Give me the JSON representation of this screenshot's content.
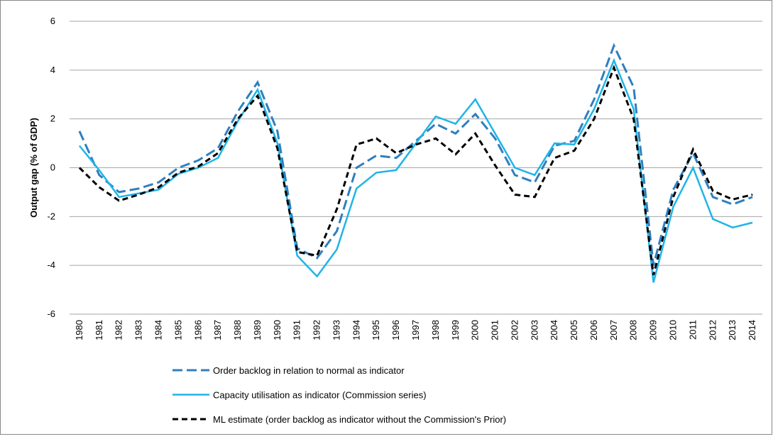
{
  "chart_data": {
    "type": "line",
    "y_label": "Output gap (% of GDP)",
    "x": [
      1980,
      1981,
      1982,
      1983,
      1984,
      1985,
      1986,
      1987,
      1988,
      1989,
      1990,
      1991,
      1992,
      1993,
      1994,
      1995,
      1996,
      1997,
      1998,
      1999,
      2000,
      2001,
      2002,
      2003,
      2004,
      2005,
      2006,
      2007,
      2008,
      2009,
      2010,
      2011,
      2012,
      2013,
      2014
    ],
    "ylim": [
      -6,
      6
    ],
    "yticks": [
      -6,
      -4,
      -2,
      0,
      2,
      4,
      6
    ],
    "grid": true,
    "legend": "bottom",
    "series": [
      {
        "name": "Order backlog in relation to normal as indicator",
        "color": "#2e7fbf",
        "style": "dashed",
        "values": [
          1.5,
          -0.3,
          -1.0,
          -0.85,
          -0.6,
          0.0,
          0.3,
          0.8,
          2.3,
          3.5,
          1.5,
          -3.3,
          -3.7,
          -2.6,
          0.0,
          0.5,
          0.4,
          1.1,
          1.8,
          1.4,
          2.2,
          1.2,
          -0.3,
          -0.6,
          0.9,
          1.1,
          2.8,
          5.0,
          3.3,
          -4.0,
          -0.9,
          0.6,
          -1.2,
          -1.5,
          -1.2
        ]
      },
      {
        "name": "Capacity utilisation as indicator (Commission series)",
        "color": "#1fb4e8",
        "style": "solid",
        "values": [
          0.9,
          -0.1,
          -1.2,
          -1.05,
          -0.9,
          -0.25,
          0.0,
          0.4,
          1.9,
          3.2,
          1.0,
          -3.6,
          -4.45,
          -3.35,
          -0.85,
          -0.2,
          -0.1,
          1.0,
          2.1,
          1.8,
          2.8,
          1.4,
          0.0,
          -0.3,
          1.0,
          0.95,
          2.4,
          4.4,
          2.4,
          -4.7,
          -1.6,
          0.0,
          -2.1,
          -2.45,
          -2.25
        ]
      },
      {
        "name": "ML estimate (order backlog as indicator without the Commission's Prior)",
        "color": "#000000",
        "style": "dashed",
        "values": [
          0.0,
          -0.8,
          -1.35,
          -1.1,
          -0.8,
          -0.2,
          0.05,
          0.6,
          2.0,
          2.95,
          0.8,
          -3.45,
          -3.6,
          -1.7,
          0.95,
          1.2,
          0.6,
          0.95,
          1.2,
          0.55,
          1.4,
          0.1,
          -1.1,
          -1.2,
          0.4,
          0.7,
          2.0,
          4.1,
          2.0,
          -4.4,
          -1.2,
          0.75,
          -0.95,
          -1.3,
          -1.1
        ]
      }
    ]
  }
}
